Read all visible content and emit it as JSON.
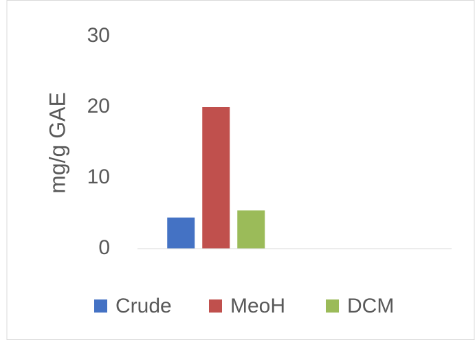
{
  "chart_data": {
    "type": "bar",
    "categories": [
      null,
      null
    ],
    "series": [
      {
        "name": "Crude",
        "color": "#4472c4",
        "values": [
          4.4,
          null
        ]
      },
      {
        "name": "MeoH",
        "color": "#c0504d",
        "values": [
          20,
          null
        ]
      },
      {
        "name": "DCM",
        "color": "#9bbb59",
        "values": [
          5.4,
          null
        ]
      }
    ],
    "y_label": "mg/g GAE",
    "ylim": [
      0,
      30
    ],
    "yticks": [
      0,
      10,
      20,
      30
    ],
    "grid": false,
    "legend": "bottom"
  }
}
